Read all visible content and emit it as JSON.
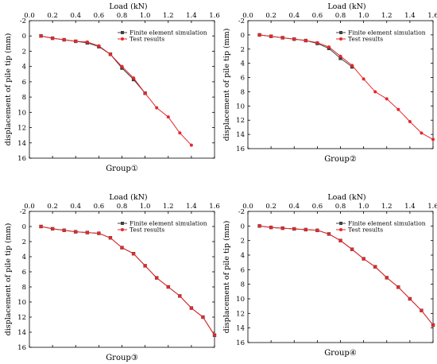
{
  "chart_data": [
    {
      "type": "line",
      "title": "",
      "xlabel": "Load (kN)",
      "ylabel": "displacement of pile tip (mm)",
      "caption": "Group①",
      "xlim": [
        0.0,
        1.6
      ],
      "ylim": [
        -2,
        16
      ],
      "y_inverted": true,
      "x_axis_position": "top",
      "xticks": [
        "0.0",
        "0.2",
        "0.4",
        "0.6",
        "0.8",
        "1.0",
        "1.2",
        "1.4",
        "1.6"
      ],
      "yticks": [
        "-2",
        "0",
        "2",
        "4",
        "6",
        "8",
        "10",
        "12",
        "14",
        "16"
      ],
      "grid": false,
      "legend_position": "top-right",
      "series": [
        {
          "name": "Finite element simulation",
          "color": "#404040",
          "marker": "square",
          "x": [
            0.1,
            0.2,
            0.3,
            0.4,
            0.5,
            0.6,
            0.7,
            0.8,
            0.9,
            1.0
          ],
          "y": [
            0.0,
            0.3,
            0.5,
            0.7,
            0.9,
            1.4,
            2.4,
            4.2,
            5.7,
            7.5
          ]
        },
        {
          "name": "Test results",
          "color": "#e8262a",
          "marker": "circle",
          "x": [
            0.1,
            0.2,
            0.3,
            0.4,
            0.5,
            0.6,
            0.7,
            0.8,
            0.9,
            1.0,
            1.1,
            1.2,
            1.3,
            1.4
          ],
          "y": [
            0.0,
            0.3,
            0.5,
            0.7,
            0.8,
            1.3,
            2.4,
            4.0,
            5.5,
            7.5,
            9.4,
            10.6,
            12.7,
            14.3
          ]
        }
      ]
    },
    {
      "type": "line",
      "title": "",
      "xlabel": "Load (kN)",
      "ylabel": "displacement of pile tip (mm)",
      "caption": "Group②",
      "xlim": [
        0.0,
        1.6
      ],
      "ylim": [
        -2,
        16
      ],
      "y_inverted": true,
      "x_axis_position": "top",
      "xticks": [
        "0.0",
        "0.2",
        "0.4",
        "0.6",
        "0.8",
        "1.0",
        "1.2",
        "1.4",
        "1.6"
      ],
      "yticks": [
        "-2",
        "0",
        "2",
        "4",
        "6",
        "8",
        "10",
        "12",
        "14",
        "16"
      ],
      "grid": false,
      "legend_position": "top-right",
      "series": [
        {
          "name": "Finite element simulation",
          "color": "#404040",
          "marker": "square",
          "x": [
            0.1,
            0.2,
            0.3,
            0.4,
            0.5,
            0.6,
            0.7,
            0.8,
            0.9
          ],
          "y": [
            0.0,
            0.2,
            0.4,
            0.6,
            0.8,
            1.2,
            1.9,
            3.3,
            4.5
          ]
        },
        {
          "name": "Test results",
          "color": "#e8262a",
          "marker": "circle",
          "x": [
            0.1,
            0.2,
            0.3,
            0.4,
            0.5,
            0.6,
            0.7,
            0.8,
            0.9,
            1.0,
            1.1,
            1.2,
            1.3,
            1.4,
            1.5,
            1.6
          ],
          "y": [
            0.0,
            0.2,
            0.4,
            0.6,
            0.8,
            1.1,
            1.7,
            3.0,
            4.3,
            6.2,
            8.0,
            9.0,
            10.5,
            12.2,
            13.8,
            14.7
          ]
        }
      ]
    },
    {
      "type": "line",
      "title": "",
      "xlabel": "Load (kN)",
      "ylabel": "displacement of pile tip (mm)",
      "caption": "Group③",
      "xlim": [
        0.0,
        1.6
      ],
      "ylim": [
        -2,
        16
      ],
      "y_inverted": true,
      "x_axis_position": "top",
      "xticks": [
        "0.0",
        "0.2",
        "0.4",
        "0.6",
        "0.8",
        "1.0",
        "1.2",
        "1.4",
        "1.6"
      ],
      "yticks": [
        "-2",
        "0",
        "2",
        "4",
        "6",
        "8",
        "10",
        "12",
        "14",
        "16"
      ],
      "grid": false,
      "legend_position": "top-right",
      "series": [
        {
          "name": "Finite element simulation",
          "color": "#404040",
          "marker": "square",
          "x": [
            0.1,
            0.2,
            0.3,
            0.4,
            0.5,
            0.6,
            0.7,
            0.8,
            0.9,
            1.0,
            1.1,
            1.2,
            1.3,
            1.4,
            1.5,
            1.6
          ],
          "y": [
            0.0,
            0.3,
            0.5,
            0.7,
            0.8,
            0.9,
            1.5,
            2.8,
            3.6,
            5.2,
            6.8,
            8.0,
            9.2,
            10.8,
            12.0,
            14.4
          ]
        },
        {
          "name": "Test results",
          "color": "#e8262a",
          "marker": "circle",
          "x": [
            0.1,
            0.2,
            0.3,
            0.4,
            0.5,
            0.6,
            0.7,
            0.8,
            0.9,
            1.0,
            1.1,
            1.2,
            1.3,
            1.4,
            1.5,
            1.6
          ],
          "y": [
            0.0,
            0.3,
            0.5,
            0.7,
            0.8,
            0.9,
            1.5,
            2.8,
            3.6,
            5.2,
            6.8,
            8.0,
            9.2,
            10.8,
            12.0,
            14.4
          ]
        }
      ]
    },
    {
      "type": "line",
      "title": "",
      "xlabel": "Load (kN)",
      "ylabel": "displacement of pile tip (mm)",
      "caption": "Group④",
      "xlim": [
        0.0,
        1.6
      ],
      "ylim": [
        -2,
        16
      ],
      "y_inverted": true,
      "x_axis_position": "top",
      "xticks": [
        "0.0",
        "0.2",
        "0.4",
        "0.6",
        "0.8",
        "1.0",
        "1.2",
        "1.4",
        "1.6"
      ],
      "yticks": [
        "-2",
        "0",
        "2",
        "4",
        "6",
        "8",
        "10",
        "12",
        "14",
        "16"
      ],
      "grid": false,
      "legend_position": "top-right",
      "series": [
        {
          "name": "Finite element simulation",
          "color": "#404040",
          "marker": "square",
          "x": [
            0.1,
            0.2,
            0.3,
            0.4,
            0.5,
            0.6,
            0.7,
            0.8,
            0.9,
            1.0,
            1.1,
            1.2,
            1.3,
            1.4,
            1.5,
            1.6
          ],
          "y": [
            0.0,
            0.2,
            0.3,
            0.4,
            0.5,
            0.6,
            1.1,
            2.0,
            3.2,
            4.5,
            5.6,
            7.1,
            8.4,
            10.0,
            11.6,
            13.6
          ]
        },
        {
          "name": "Test results",
          "color": "#e8262a",
          "marker": "circle",
          "x": [
            0.1,
            0.2,
            0.3,
            0.4,
            0.5,
            0.6,
            0.7,
            0.8,
            0.9,
            1.0,
            1.1,
            1.2,
            1.3,
            1.4,
            1.5,
            1.6
          ],
          "y": [
            0.0,
            0.2,
            0.3,
            0.4,
            0.5,
            0.6,
            1.1,
            2.0,
            3.2,
            4.5,
            5.6,
            7.1,
            8.4,
            10.0,
            11.6,
            13.6
          ]
        }
      ]
    }
  ]
}
